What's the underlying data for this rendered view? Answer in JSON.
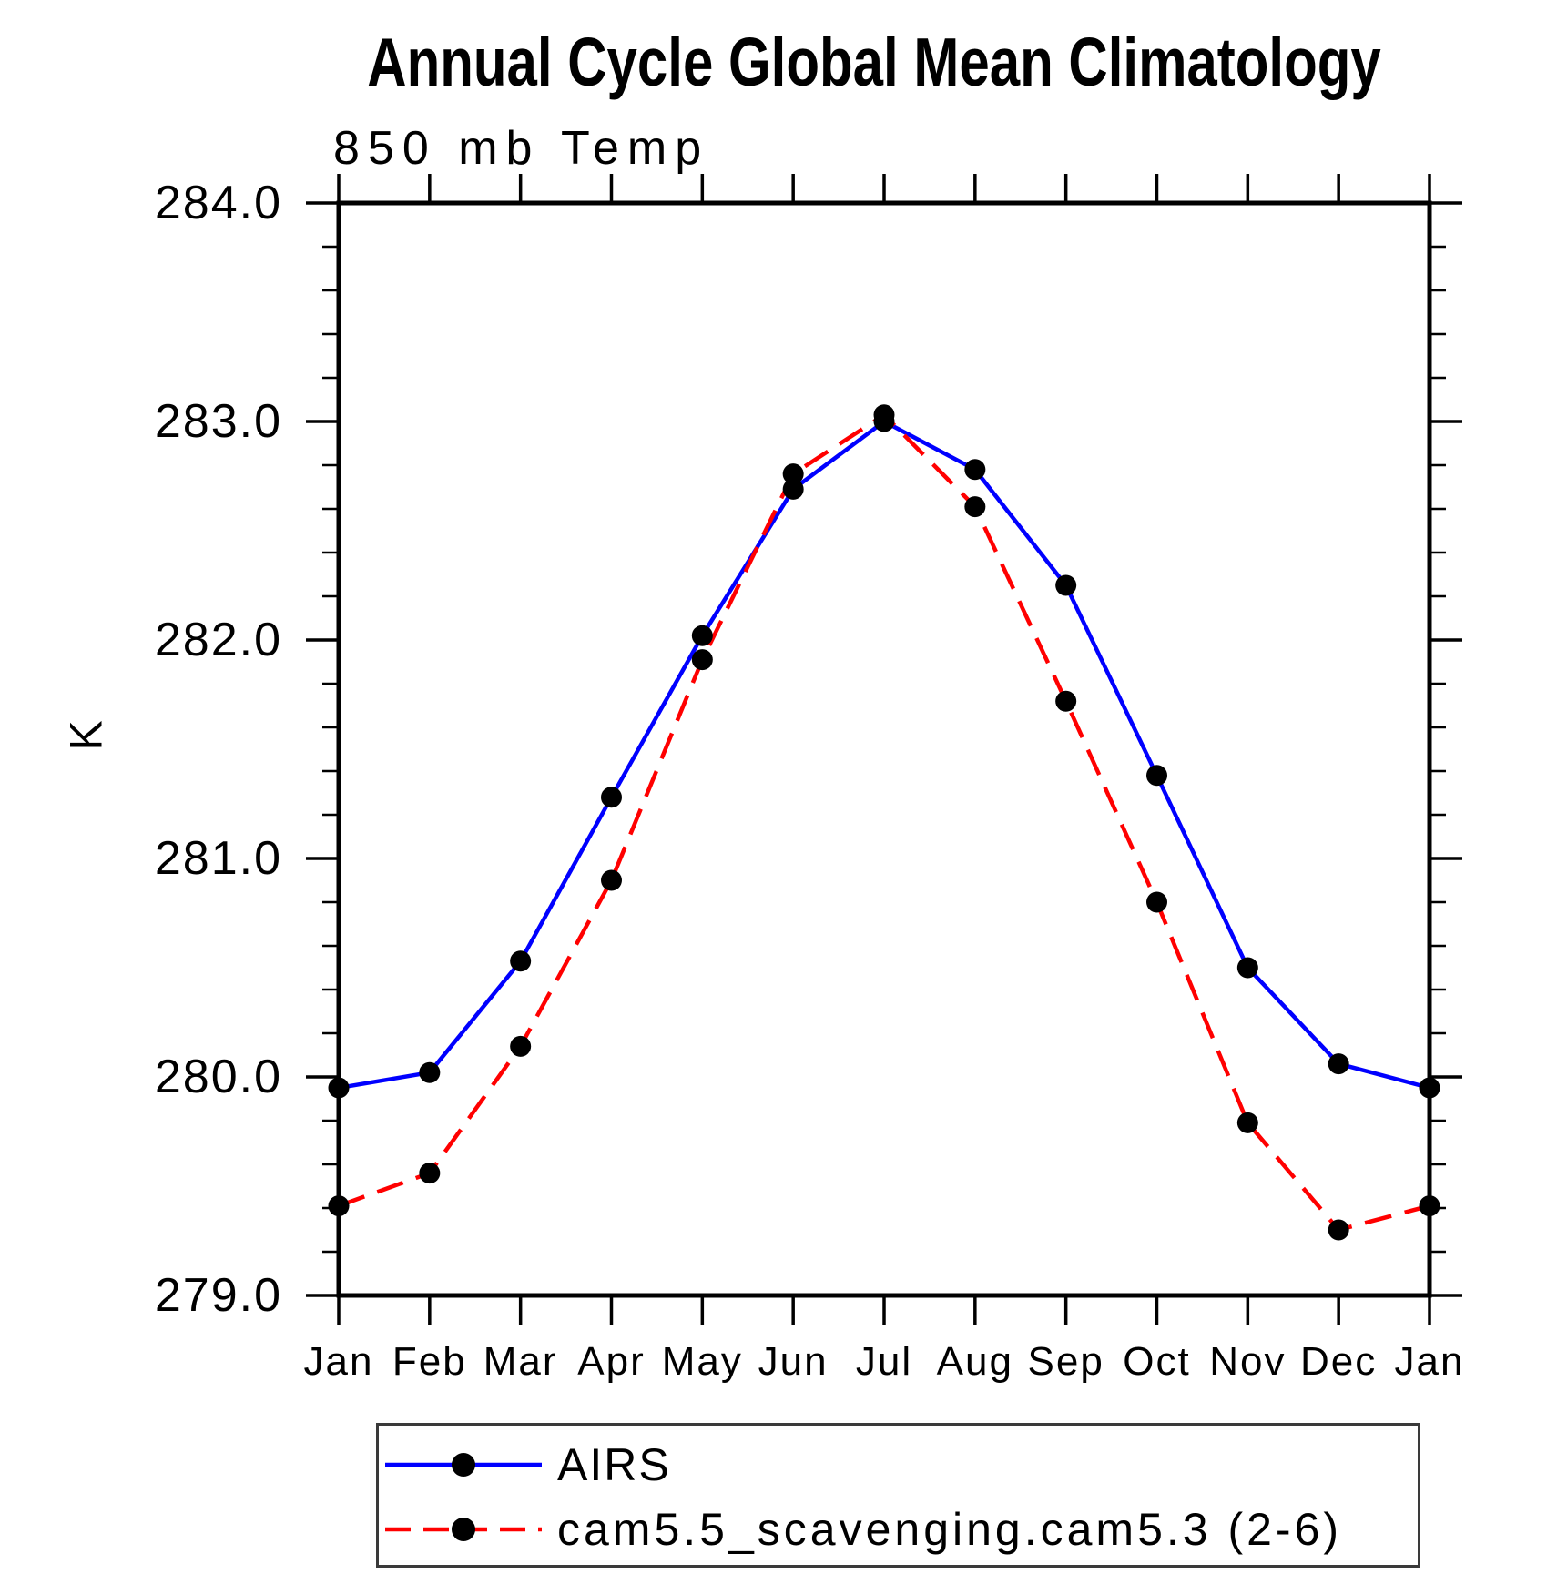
{
  "title": "Annual Cycle Global Mean Climatology",
  "chart_data": {
    "type": "line",
    "title": "850 mb Temp",
    "xlabel": "",
    "ylabel": "K",
    "categories": [
      "Jan",
      "Feb",
      "Mar",
      "Apr",
      "May",
      "Jun",
      "Jul",
      "Aug",
      "Sep",
      "Oct",
      "Nov",
      "Dec",
      "Jan"
    ],
    "ylim": [
      279.0,
      284.0
    ],
    "yticks": [
      "284.0",
      "283.0",
      "282.0",
      "281.0",
      "280.0",
      "279.0"
    ],
    "y_minor_step": 0.2,
    "grid": false,
    "legend_position": "bottom",
    "axis_color": "#000000",
    "series": [
      {
        "name": "AIRS",
        "color": "#0000ff",
        "line_style": "solid",
        "marker": "circle",
        "marker_color": "#000000",
        "values": [
          279.95,
          280.02,
          280.53,
          281.28,
          282.02,
          282.69,
          283.0,
          282.78,
          282.25,
          281.38,
          280.5,
          280.06,
          279.95
        ]
      },
      {
        "name": "cam5.5_scavenging.cam5.3 (2-6)",
        "color": "#ff0000",
        "line_style": "dashed",
        "marker": "circle",
        "marker_color": "#000000",
        "values": [
          279.41,
          279.56,
          280.14,
          280.9,
          281.91,
          282.76,
          283.03,
          282.61,
          281.72,
          280.8,
          279.79,
          279.3,
          279.41
        ]
      }
    ]
  }
}
